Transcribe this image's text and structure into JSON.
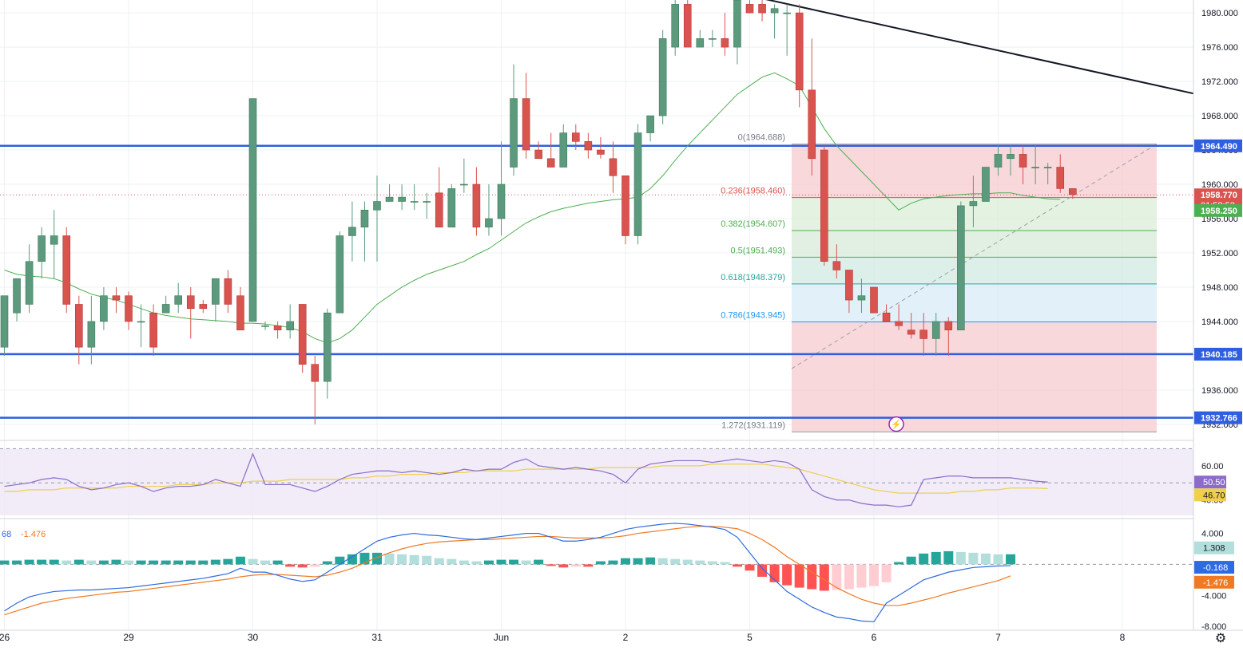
{
  "colors": {
    "up": "#5b9a7d",
    "down": "#d9534f",
    "ema": "#4caf50",
    "hline": "#2f5fe0",
    "rsi": "#8b6cc9",
    "rsi_ma": "#f0d04a",
    "macd": "#2f6be0",
    "signal": "#f07a24",
    "hist_up_strong": "#26a69a",
    "hist_up_weak": "#b2dfdb",
    "hist_dn_strong": "#ff5252",
    "hist_dn_weak": "#ffcdd2"
  },
  "price_axis": {
    "ticks": [
      "1980.000",
      "1976.000",
      "1972.000",
      "1968.000",
      "1964.000",
      "1960.000",
      "1956.000",
      "1952.000",
      "1948.000",
      "1944.000",
      "1940.000",
      "1936.000",
      "1932.000"
    ],
    "badges": [
      {
        "value": 1964.49,
        "label": "1964.490",
        "color": "#2f5fe0"
      },
      {
        "value": 1958.77,
        "label": "1958.770",
        "sub": "01:58:52",
        "color": "#d9534f"
      },
      {
        "value": 1958.25,
        "label": "1958.250",
        "color": "#4caf50"
      },
      {
        "value": 1940.185,
        "label": "1940.185",
        "color": "#2f5fe0"
      },
      {
        "value": 1932.766,
        "label": "1932.766",
        "color": "#2f5fe0"
      }
    ]
  },
  "rsi_axis": {
    "ticks": [
      "60.00",
      "40.00"
    ],
    "badges": [
      {
        "label": "50.50",
        "color": "#8b6cc9"
      },
      {
        "label": "46.70",
        "color": "#f0d04a"
      }
    ]
  },
  "macd_axis": {
    "ticks": [
      "4.000",
      "-4.000",
      "-8.000"
    ],
    "badges": [
      {
        "label": "1.308",
        "color": "#b2dfdb"
      },
      {
        "label": "-0.168",
        "color": "#2f6be0"
      },
      {
        "label": "-1.476",
        "color": "#f07a24"
      }
    ]
  },
  "macd_legend": {
    "a": "68",
    "b": "-1.476"
  },
  "time_axis": [
    {
      "label": "26",
      "bar": 0
    },
    {
      "label": "29",
      "bar": 10
    },
    {
      "label": "30",
      "bar": 20
    },
    {
      "label": "31",
      "bar": 30
    },
    {
      "label": "Jun",
      "bar": 40
    },
    {
      "label": "2",
      "bar": 50
    },
    {
      "label": "5",
      "bar": 60
    },
    {
      "label": "6",
      "bar": 70
    },
    {
      "label": "7",
      "bar": 80
    },
    {
      "label": "8",
      "bar": 90
    }
  ],
  "fib_labels": [
    {
      "level": "0",
      "price": "1964.688"
    },
    {
      "level": "0.236",
      "price": "1958.460"
    },
    {
      "level": "0.382",
      "price": "1954.607"
    },
    {
      "level": "0.5",
      "price": "1951.493"
    },
    {
      "level": "0.618",
      "price": "1948.379"
    },
    {
      "level": "0.786",
      "price": "1943.945"
    },
    {
      "level": "1.272",
      "price": "1931.119"
    }
  ],
  "chart_data": {
    "type": "candlestick",
    "symbol_timeframe": "",
    "ylim": [
      1930.5,
      1981.5
    ],
    "horizontal_levels": [
      1964.49,
      1940.185,
      1932.766
    ],
    "candles": [
      {
        "o": 1941,
        "h": 1947,
        "l": 1940,
        "c": 1947
      },
      {
        "o": 1945,
        "h": 1949,
        "l": 1944,
        "c": 1949
      },
      {
        "o": 1946,
        "h": 1953,
        "l": 1945,
        "c": 1951
      },
      {
        "o": 1951,
        "h": 1955,
        "l": 1949,
        "c": 1954
      },
      {
        "o": 1953,
        "h": 1957,
        "l": 1949,
        "c": 1954
      },
      {
        "o": 1954,
        "h": 1955,
        "l": 1945,
        "c": 1946
      },
      {
        "o": 1946,
        "h": 1947,
        "l": 1939,
        "c": 1941
      },
      {
        "o": 1941,
        "h": 1947,
        "l": 1939,
        "c": 1944
      },
      {
        "o": 1944,
        "h": 1948,
        "l": 1943,
        "c": 1947
      },
      {
        "o": 1947,
        "h": 1948,
        "l": 1945,
        "c": 1946.5
      },
      {
        "o": 1947,
        "h": 1947.5,
        "l": 1943,
        "c": 1944
      },
      {
        "o": 1944,
        "h": 1946,
        "l": 1941,
        "c": 1944
      },
      {
        "o": 1945,
        "h": 1946,
        "l": 1940,
        "c": 1941
      },
      {
        "o": 1945,
        "h": 1947,
        "l": 1945,
        "c": 1946
      },
      {
        "o": 1946,
        "h": 1948.5,
        "l": 1945,
        "c": 1947
      },
      {
        "o": 1947,
        "h": 1948,
        "l": 1942,
        "c": 1945.5
      },
      {
        "o": 1946,
        "h": 1946.5,
        "l": 1945,
        "c": 1945.5
      },
      {
        "o": 1946,
        "h": 1949,
        "l": 1944,
        "c": 1949
      },
      {
        "o": 1949,
        "h": 1950,
        "l": 1945,
        "c": 1946
      },
      {
        "o": 1947,
        "h": 1948,
        "l": 1943,
        "c": 1943
      },
      {
        "o": 1944,
        "h": 1970,
        "l": 1944,
        "c": 1970
      },
      {
        "o": 1943.5,
        "h": 1944,
        "l": 1943,
        "c": 1943.5
      },
      {
        "o": 1943.5,
        "h": 1944,
        "l": 1942,
        "c": 1943
      },
      {
        "o": 1943,
        "h": 1946,
        "l": 1942,
        "c": 1944
      },
      {
        "o": 1946,
        "h": 1946,
        "l": 1938,
        "c": 1939
      },
      {
        "o": 1939,
        "h": 1940,
        "l": 1932,
        "c": 1937
      },
      {
        "o": 1937,
        "h": 1945.5,
        "l": 1935,
        "c": 1945
      },
      {
        "o": 1945,
        "h": 1954.5,
        "l": 1945,
        "c": 1954
      },
      {
        "o": 1954,
        "h": 1958,
        "l": 1951,
        "c": 1955
      },
      {
        "o": 1955,
        "h": 1958,
        "l": 1951,
        "c": 1957
      },
      {
        "o": 1957,
        "h": 1961,
        "l": 1951,
        "c": 1958
      },
      {
        "o": 1958,
        "h": 1960,
        "l": 1958,
        "c": 1958.5
      },
      {
        "o": 1958,
        "h": 1960,
        "l": 1957,
        "c": 1958.5
      },
      {
        "o": 1958,
        "h": 1960,
        "l": 1957,
        "c": 1958
      },
      {
        "o": 1958,
        "h": 1959,
        "l": 1956,
        "c": 1958
      },
      {
        "o": 1959,
        "h": 1962,
        "l": 1955,
        "c": 1955
      },
      {
        "o": 1955,
        "h": 1960,
        "l": 1955,
        "c": 1959.5
      },
      {
        "o": 1960,
        "h": 1963,
        "l": 1959,
        "c": 1960
      },
      {
        "o": 1960,
        "h": 1962,
        "l": 1954,
        "c": 1955
      },
      {
        "o": 1955,
        "h": 1960,
        "l": 1954,
        "c": 1956
      },
      {
        "o": 1956,
        "h": 1965,
        "l": 1954,
        "c": 1960
      },
      {
        "o": 1962,
        "h": 1974,
        "l": 1961,
        "c": 1970
      },
      {
        "o": 1970,
        "h": 1973,
        "l": 1963,
        "c": 1964
      },
      {
        "o": 1964,
        "h": 1965,
        "l": 1963,
        "c": 1963
      },
      {
        "o": 1963,
        "h": 1966,
        "l": 1962,
        "c": 1962
      },
      {
        "o": 1962,
        "h": 1967,
        "l": 1962,
        "c": 1966
      },
      {
        "o": 1966,
        "h": 1967,
        "l": 1964,
        "c": 1965
      },
      {
        "o": 1965,
        "h": 1966,
        "l": 1963,
        "c": 1964
      },
      {
        "o": 1964,
        "h": 1965.5,
        "l": 1963,
        "c": 1963.5
      },
      {
        "o": 1963,
        "h": 1965,
        "l": 1959,
        "c": 1961
      },
      {
        "o": 1961,
        "h": 1961,
        "l": 1953,
        "c": 1954
      },
      {
        "o": 1954,
        "h": 1967,
        "l": 1953,
        "c": 1966
      },
      {
        "o": 1966,
        "h": 1968,
        "l": 1965,
        "c": 1968
      },
      {
        "o": 1968,
        "h": 1978,
        "l": 1967,
        "c": 1977
      },
      {
        "o": 1976,
        "h": 1982,
        "l": 1975,
        "c": 1981
      },
      {
        "o": 1981,
        "h": 1982,
        "l": 1976,
        "c": 1976
      },
      {
        "o": 1976,
        "h": 1978,
        "l": 1976,
        "c": 1977
      },
      {
        "o": 1977,
        "h": 1978,
        "l": 1976,
        "c": 1977
      },
      {
        "o": 1977,
        "h": 1980,
        "l": 1975,
        "c": 1976
      },
      {
        "o": 1976,
        "h": 1982,
        "l": 1974,
        "c": 1981.5
      },
      {
        "o": 1981,
        "h": 1982,
        "l": 1980,
        "c": 1980
      }
    ],
    "candles_b": [
      {
        "o": 1981,
        "h": 1982,
        "l": 1979,
        "c": 1980
      },
      {
        "o": 1980,
        "h": 1981,
        "l": 1977,
        "c": 1980.5
      },
      {
        "o": 1980,
        "h": 1981,
        "l": 1975,
        "c": 1980
      },
      {
        "o": 1980,
        "h": 1981,
        "l": 1969,
        "c": 1971
      },
      {
        "o": 1971,
        "h": 1977,
        "l": 1961,
        "c": 1963
      },
      {
        "o": 1964,
        "h": 1964.5,
        "l": 1950.5,
        "c": 1951
      },
      {
        "o": 1951,
        "h": 1953,
        "l": 1949,
        "c": 1950
      },
      {
        "o": 1950,
        "h": 1950,
        "l": 1945,
        "c": 1946.5
      },
      {
        "o": 1946.5,
        "h": 1949,
        "l": 1945,
        "c": 1947
      },
      {
        "o": 1948,
        "h": 1948,
        "l": 1945,
        "c": 1945
      },
      {
        "o": 1945,
        "h": 1946,
        "l": 1944,
        "c": 1944
      },
      {
        "o": 1944,
        "h": 1946,
        "l": 1943,
        "c": 1943.5
      },
      {
        "o": 1943,
        "h": 1945,
        "l": 1942,
        "c": 1942.5
      },
      {
        "o": 1943,
        "h": 1945,
        "l": 1940,
        "c": 1942
      },
      {
        "o": 1942,
        "h": 1945,
        "l": 1940,
        "c": 1944
      },
      {
        "o": 1944,
        "h": 1944.5,
        "l": 1940,
        "c": 1943
      },
      {
        "o": 1943,
        "h": 1958,
        "l": 1943,
        "c": 1957.5
      },
      {
        "o": 1957.5,
        "h": 1961,
        "l": 1955,
        "c": 1958
      },
      {
        "o": 1958,
        "h": 1962,
        "l": 1958,
        "c": 1962
      },
      {
        "o": 1962,
        "h": 1964.5,
        "l": 1961,
        "c": 1963.5
      },
      {
        "o": 1963,
        "h": 1964.5,
        "l": 1961,
        "c": 1963.5
      },
      {
        "o": 1963.5,
        "h": 1964.5,
        "l": 1960,
        "c": 1962
      },
      {
        "o": 1962,
        "h": 1964.7,
        "l": 1960,
        "c": 1962
      },
      {
        "o": 1962,
        "h": 1962.5,
        "l": 1960,
        "c": 1962
      },
      {
        "o": 1962,
        "h": 1963.5,
        "l": 1959,
        "c": 1959.5
      },
      {
        "o": 1959.5,
        "h": 1959.5,
        "l": 1958.3,
        "c": 1958.8
      }
    ],
    "ema": [
      1950,
      1949.5,
      1949.3,
      1949.2,
      1949,
      1948.5,
      1947.8,
      1947.2,
      1946.8,
      1946.5,
      1946,
      1945.5,
      1945,
      1944.7,
      1944.5,
      1944.3,
      1944.2,
      1944.1,
      1944,
      1943.8,
      1943.8,
      1943.7,
      1943.5,
      1943.3,
      1942.8,
      1942,
      1941.5,
      1942,
      1943,
      1944.5,
      1946,
      1947,
      1948,
      1948.8,
      1949.5,
      1950,
      1950.5,
      1951,
      1951.8,
      1952.5,
      1953.5,
      1954.5,
      1955.5,
      1956.2,
      1956.8,
      1957.2,
      1957.5,
      1957.8,
      1958,
      1958.2,
      1958.3,
      1958.5,
      1959.5,
      1961,
      1962.8,
      1964.5,
      1966,
      1967.5,
      1969,
      1970.5,
      1971.5,
      1972.5,
      1973,
      1972.3,
      1971.5,
      1969,
      1966.5,
      1964.5,
      1963,
      1961.5,
      1960,
      1958.5,
      1957,
      1957.8,
      1958.3,
      1958.5,
      1958.7,
      1958.8,
      1958.9,
      1958.9,
      1959,
      1959,
      1958.7,
      1958.5,
      1958.3,
      1958.25
    ],
    "fib": [
      {
        "level": 0,
        "price": 1964.688
      },
      {
        "level": 0.236,
        "price": 1958.46
      },
      {
        "level": 0.382,
        "price": 1954.607
      },
      {
        "level": 0.5,
        "price": 1951.493
      },
      {
        "level": 0.618,
        "price": 1948.379
      },
      {
        "level": 0.786,
        "price": 1943.945
      },
      {
        "level": 1.272,
        "price": 1931.119
      }
    ],
    "trendline": [
      {
        "bar": 60,
        "price": 1982
      },
      {
        "bar": 96,
        "price": 1970.5
      }
    ],
    "rsi": {
      "ylim": [
        31,
        73
      ],
      "values": [
        48,
        49,
        50,
        52,
        53,
        52,
        48,
        46,
        47,
        49,
        50,
        48,
        45,
        47,
        48,
        48,
        49,
        52,
        50,
        48,
        67,
        49,
        49,
        49,
        47,
        45,
        48,
        52,
        55,
        56,
        57,
        57,
        56,
        57,
        56,
        55,
        56,
        58,
        57,
        58,
        58,
        62,
        64,
        60,
        59,
        58,
        59,
        58,
        57,
        55,
        50,
        58,
        61,
        62,
        63,
        63,
        63,
        62,
        63,
        64,
        63,
        62,
        63,
        62,
        58,
        46,
        42,
        40,
        40,
        38,
        37,
        37,
        36,
        37,
        52,
        53,
        54,
        54,
        53,
        53,
        53,
        53,
        52,
        51,
        50.5
      ],
      "ma": [
        45,
        45,
        46,
        46,
        46,
        47,
        47,
        47,
        47,
        47,
        48,
        48,
        48,
        48,
        49,
        49,
        49,
        50,
        50,
        50,
        51,
        51,
        51,
        52,
        52,
        52,
        52,
        52,
        53,
        53,
        54,
        54,
        55,
        55,
        55,
        56,
        56,
        56,
        57,
        57,
        57,
        57,
        58,
        58,
        58,
        58,
        58,
        58,
        59,
        59,
        59,
        59,
        59,
        60,
        60,
        60,
        60,
        61,
        61,
        61,
        61,
        61,
        60,
        59,
        58,
        56,
        54,
        52,
        50,
        48,
        46,
        45,
        44,
        44,
        44,
        44,
        44,
        45,
        45,
        46,
        46,
        47,
        47,
        47,
        46.7
      ]
    },
    "macd": {
      "ylim": [
        -8.5,
        5.5
      ],
      "macd": [
        -6,
        -5,
        -4.2,
        -3.8,
        -3.5,
        -3.4,
        -3.3,
        -3.3,
        -3.2,
        -3.1,
        -3,
        -2.8,
        -2.6,
        -2.4,
        -2.2,
        -2,
        -1.8,
        -1.5,
        -1.2,
        -0.5,
        -1,
        -1,
        -1.4,
        -1.9,
        -2.2,
        -2,
        -1,
        0,
        1,
        2,
        3,
        3.5,
        3.8,
        4,
        3.8,
        3.7,
        3.5,
        3.3,
        3.2,
        3.4,
        3.6,
        3.8,
        4,
        4,
        3.5,
        3,
        3,
        3.2,
        3.5,
        4,
        4.5,
        4.8,
        5,
        5.2,
        5.3,
        5.2,
        5,
        4.8,
        4.5,
        3.5,
        1.5,
        -0.5,
        -2,
        -3.5,
        -4.5,
        -5.5,
        -6.2,
        -6.8,
        -7,
        -7.3,
        -7.4,
        -5,
        -4,
        -3,
        -2,
        -1.5,
        -1,
        -0.7,
        -0.4,
        -0.3,
        -0.2,
        -0.168
      ],
      "signal": [
        -6.5,
        -6,
        -5.5,
        -5,
        -4.7,
        -4.4,
        -4.2,
        -4,
        -3.8,
        -3.6,
        -3.5,
        -3.3,
        -3.1,
        -2.9,
        -2.7,
        -2.5,
        -2.3,
        -2.1,
        -1.9,
        -1.6,
        -1.4,
        -1.3,
        -1.3,
        -1.4,
        -1.5,
        -1.6,
        -1.4,
        -1,
        -0.5,
        0.2,
        0.9,
        1.5,
        2,
        2.4,
        2.7,
        2.9,
        3,
        3.1,
        3.2,
        3.2,
        3.3,
        3.4,
        3.5,
        3.6,
        3.6,
        3.5,
        3.4,
        3.4,
        3.4,
        3.5,
        3.7,
        4,
        4.2,
        4.4,
        4.6,
        4.8,
        4.9,
        4.9,
        4.8,
        4.6,
        4,
        3.2,
        2.2,
        1,
        0,
        -1,
        -2,
        -3,
        -3.8,
        -4.5,
        -5,
        -5.3,
        -5.3,
        -5,
        -4.6,
        -4.2,
        -3.7,
        -3.3,
        -2.9,
        -2.5,
        -2.1,
        -1.476
      ],
      "hist": [
        0.5,
        0.5,
        0.6,
        0.6,
        0.6,
        0.5,
        0.6,
        0.5,
        0.5,
        0.6,
        0.5,
        0.5,
        0.5,
        0.5,
        0.5,
        0.5,
        0.5,
        0.6,
        0.7,
        1.0,
        0.7,
        0.5,
        0.5,
        -0.3,
        -0.4,
        -0.3,
        0.4,
        1.0,
        1.3,
        1.5,
        1.5,
        1.4,
        1.3,
        1.2,
        1.1,
        0.8,
        0.7,
        0.5,
        0.4,
        0.5,
        0.6,
        0.6,
        0.5,
        0.6,
        -0.2,
        -0.4,
        -0.3,
        -0.3,
        0.4,
        0.5,
        0.8,
        0.8,
        0.9,
        0.8,
        0.7,
        0.6,
        0.5,
        0.4,
        0.3,
        -0.3,
        -0.8,
        -1.6,
        -2.3,
        -2.7,
        -3.0,
        -3.2,
        -3.4,
        -3.3,
        -3.2,
        -3.0,
        -2.8,
        -2.3,
        0.3,
        1.0,
        1.4,
        1.6,
        1.7,
        1.6,
        1.5,
        1.4,
        1.3,
        1.308
      ]
    }
  }
}
